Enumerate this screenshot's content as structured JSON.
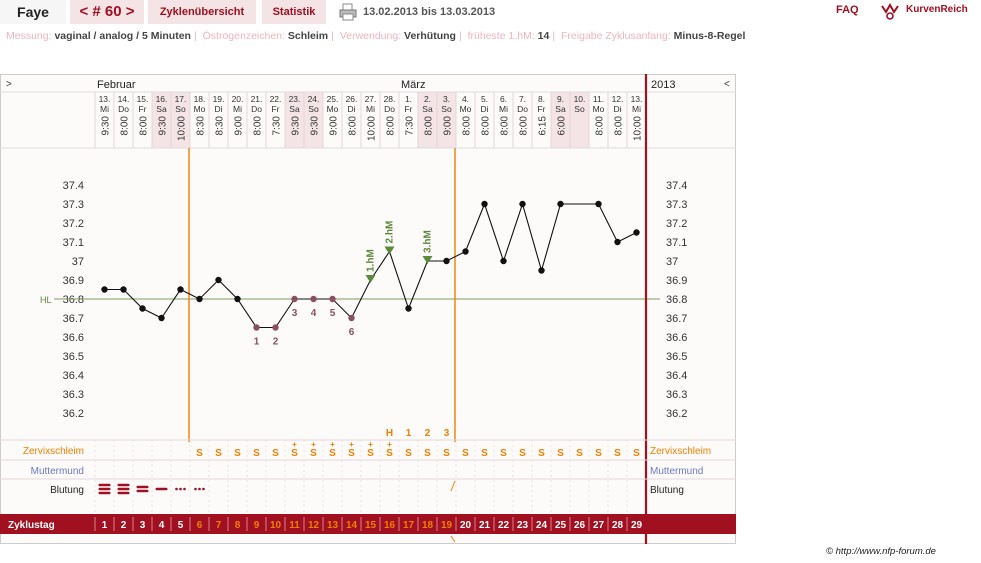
{
  "topbar": {
    "name": "Faye",
    "cycle_nav": "< # 60 >",
    "overview": "Zyklenübersicht",
    "stats": "Statistik",
    "range": "13.02.2013 bis 13.03.2013",
    "faq": "FAQ",
    "brand": "KurvenReich"
  },
  "info": {
    "messung_label": "Messung:",
    "messung_value": "vaginal / analog / 5 Minuten",
    "oestrogen_label": "Östrogenzeichen:",
    "oestrogen_value": "Schleim",
    "verwendung_label": "Verwendung:",
    "verwendung_value": "Verhütung",
    "hm_label": "früheste 1.hM:",
    "hm_value": "14",
    "freigabe_label": "Freigabe Zyklusanfang:",
    "freigabe_value": "Minus-8-Regel"
  },
  "chart": {
    "collapse_left": ">",
    "collapse_right": "<",
    "month_feb": "Februar",
    "month_mar": "März",
    "year": "2013",
    "y_ticks": [
      "37.4",
      "37.3",
      "37.2",
      "37.1",
      "37",
      "36.9",
      "36.8",
      "36.7",
      "36.6",
      "36.5",
      "36.4",
      "36.3",
      "36.2"
    ],
    "hl_label": "HL",
    "row_labels": {
      "zervix": "Zervixschleim",
      "muttermund": "Muttermund",
      "blutung": "Blutung",
      "zyklustag": "Zyklustag"
    },
    "colors": {
      "brand": "#a01020",
      "orange": "#f08000",
      "green_marker": "#5a8a3a",
      "weekend": "#f4e4e6",
      "counted_point": "#8a5060",
      "muttermund": "#6a7ac0"
    }
  },
  "chart_data": {
    "type": "line",
    "days": [
      {
        "day": 1,
        "date": "13.",
        "wd": "Mi",
        "time": "9:30",
        "temp": 36.85,
        "weekend": false
      },
      {
        "day": 2,
        "date": "14.",
        "wd": "Do",
        "time": "8:00",
        "temp": 36.85,
        "weekend": false
      },
      {
        "day": 3,
        "date": "15.",
        "wd": "Fr",
        "time": "8:00",
        "temp": 36.75,
        "weekend": false
      },
      {
        "day": 4,
        "date": "16.",
        "wd": "Sa",
        "time": "9:30",
        "temp": 36.7,
        "weekend": true
      },
      {
        "day": 5,
        "date": "17.",
        "wd": "So",
        "time": "10:00",
        "temp": 36.85,
        "weekend": true
      },
      {
        "day": 6,
        "date": "18.",
        "wd": "Mo",
        "time": "8:30",
        "temp": 36.8,
        "weekend": false
      },
      {
        "day": 7,
        "date": "19.",
        "wd": "Di",
        "time": "8:30",
        "temp": 36.9,
        "weekend": false
      },
      {
        "day": 8,
        "date": "20.",
        "wd": "Mi",
        "time": "9:00",
        "temp": 36.8,
        "weekend": false
      },
      {
        "day": 9,
        "date": "21.",
        "wd": "Do",
        "time": "8:00",
        "temp": 36.65,
        "weekend": false
      },
      {
        "day": 10,
        "date": "22.",
        "wd": "Fr",
        "time": "7:30",
        "temp": 36.65,
        "weekend": false
      },
      {
        "day": 11,
        "date": "23.",
        "wd": "Sa",
        "time": "9:30",
        "temp": 36.8,
        "weekend": true
      },
      {
        "day": 12,
        "date": "24.",
        "wd": "So",
        "time": "9:30",
        "temp": 36.8,
        "weekend": true
      },
      {
        "day": 13,
        "date": "25.",
        "wd": "Mo",
        "time": "9:00",
        "temp": 36.8,
        "weekend": false
      },
      {
        "day": 14,
        "date": "26.",
        "wd": "Di",
        "time": "8:00",
        "temp": 36.7,
        "weekend": false
      },
      {
        "day": 15,
        "date": "27.",
        "wd": "Mi",
        "time": "10:00",
        "temp": 36.9,
        "weekend": false
      },
      {
        "day": 16,
        "date": "28.",
        "wd": "Do",
        "time": "8:00",
        "temp": 37.05,
        "weekend": false
      },
      {
        "day": 17,
        "date": "1.",
        "wd": "Fr",
        "time": "7:30",
        "temp": 36.75,
        "weekend": false
      },
      {
        "day": 18,
        "date": "2.",
        "wd": "Sa",
        "time": "8:00",
        "temp": 37.0,
        "weekend": true
      },
      {
        "day": 19,
        "date": "3.",
        "wd": "So",
        "time": "9:00",
        "temp": 37.0,
        "weekend": true
      },
      {
        "day": 20,
        "date": "4.",
        "wd": "Mo",
        "time": "8:00",
        "temp": 37.05,
        "weekend": false
      },
      {
        "day": 21,
        "date": "5.",
        "wd": "Di",
        "time": "8:00",
        "temp": 37.3,
        "weekend": false
      },
      {
        "day": 22,
        "date": "6.",
        "wd": "Mi",
        "time": "8:00",
        "temp": 37.0,
        "weekend": false
      },
      {
        "day": 23,
        "date": "7.",
        "wd": "Do",
        "time": "8:00",
        "temp": 37.3,
        "weekend": false
      },
      {
        "day": 24,
        "date": "8.",
        "wd": "Fr",
        "time": "6:15",
        "temp": 36.95,
        "weekend": false
      },
      {
        "day": 25,
        "date": "9.",
        "wd": "Sa",
        "time": "6:00",
        "temp": 37.3,
        "weekend": true
      },
      {
        "day": 26,
        "date": "10.",
        "wd": "So",
        "time": "",
        "temp": null,
        "weekend": true
      },
      {
        "day": 27,
        "date": "11.",
        "wd": "Mo",
        "time": "8:00",
        "temp": 37.3,
        "weekend": false
      },
      {
        "day": 28,
        "date": "12.",
        "wd": "Di",
        "time": "8:00",
        "temp": 37.1,
        "weekend": false
      },
      {
        "day": 29,
        "date": "13.",
        "wd": "Mi",
        "time": "10:00",
        "temp": 37.15,
        "weekend": false
      }
    ],
    "ylim": [
      36.1,
      37.5
    ],
    "hl_value": 36.8,
    "low_counts": [
      {
        "day": 9,
        "label": "1"
      },
      {
        "day": 10,
        "label": "2"
      },
      {
        "day": 11,
        "label": "3"
      },
      {
        "day": 12,
        "label": "4"
      },
      {
        "day": 13,
        "label": "5"
      },
      {
        "day": 14,
        "label": "6"
      }
    ],
    "high_markers": [
      {
        "day": 15,
        "label": "1.hM"
      },
      {
        "day": 16,
        "label": "2.hM"
      },
      {
        "day": 18,
        "label": "3.hM"
      }
    ],
    "peak_labels": [
      {
        "day": 16,
        "label": "H"
      },
      {
        "day": 17,
        "label": "1"
      },
      {
        "day": 18,
        "label": "2"
      },
      {
        "day": 19,
        "label": "3"
      }
    ],
    "mucus": [
      "",
      "",
      "",
      "",
      "",
      "S",
      "S",
      "S",
      "S",
      "S",
      "S+",
      "S+",
      "S+",
      "S+",
      "S+",
      "S+",
      "S",
      "S",
      "S",
      "S",
      "S",
      "S",
      "S",
      "S",
      "S",
      "S",
      "S",
      "S",
      "S"
    ],
    "bleeding": [
      3,
      3,
      2,
      1,
      "d",
      "d",
      "",
      "",
      "",
      "",
      "",
      "",
      "",
      "",
      "",
      "",
      "",
      "",
      "",
      "",
      "",
      "",
      "",
      "",
      "",
      "",
      "",
      "",
      ""
    ],
    "orange_days": [
      6,
      7,
      8,
      9,
      10,
      11,
      12,
      13,
      14,
      15,
      16,
      17,
      18,
      19
    ],
    "orange_line_days": [
      6,
      19
    ]
  },
  "footer": {
    "copyright": "© http://www.nfp-forum.de"
  }
}
